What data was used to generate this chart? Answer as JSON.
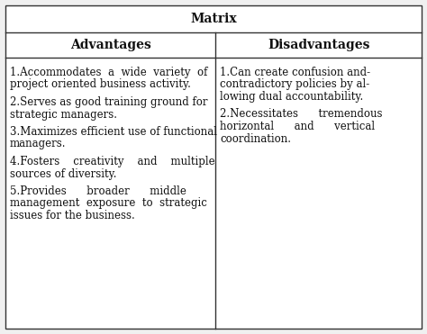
{
  "title": "Matrix",
  "col_headers": [
    "Advantages",
    "Disadvantages"
  ],
  "adv_lines": [
    "1.Accommodates  a  wide  variety  of",
    "project oriented business activity.",
    "",
    "2.Serves as good training ground for",
    "strategic managers.",
    "",
    "3.Maximizes efficient use of functional",
    "managers.",
    "",
    "4.Fosters    creativity    and    multiple",
    "sources of diversity.",
    "",
    "5.Provides      broader      middle",
    "management  exposure  to  strategic",
    "issues for the business."
  ],
  "dis_lines": [
    "1.Can create confusion and-",
    "contradictory policies by al-",
    "lowing dual accountability.",
    "",
    "2.Necessitates      tremendous",
    "horizontal      and      vertical",
    "coordination."
  ],
  "bg_color": "#f0f0f0",
  "border_color": "#333333",
  "text_color": "#111111",
  "title_fontsize": 10,
  "header_fontsize": 10,
  "body_fontsize": 8.5,
  "fig_width": 4.74,
  "fig_height": 3.71,
  "dpi": 100
}
